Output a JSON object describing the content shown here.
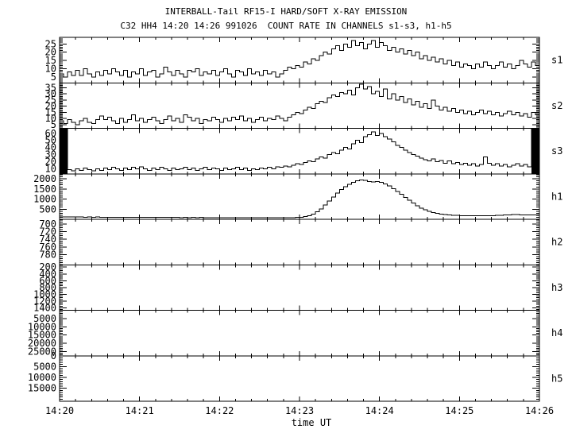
{
  "title": "INTERBALL-Tail RF15-I HARD/SOFT X-RAY EMISSION",
  "subtitle": "C32 HH4 14:20 14:26 991026  COUNT RATE IN CHANNELS s1-s3, h1-h5",
  "colors": {
    "foreground": "#000000",
    "background": "#ffffff"
  },
  "x_axis": {
    "label": "time UT",
    "tick_labels": [
      "14:20",
      "14:21",
      "14:22",
      "14:23",
      "14:24",
      "14:25",
      "14:26"
    ],
    "major_interval_s": 60,
    "minor_interval_s": 12,
    "span_s": 360
  },
  "chart_data": {
    "type": "line",
    "title": "INTERBALL-Tail RF15-I HARD/SOFT X-RAY EMISSION",
    "subtitle": "C32 HH4 14:20 14:26 991026  COUNT RATE IN CHANNELS s1-s3, h1-h5",
    "xlabel": "time UT",
    "x_start": "14:20",
    "x_end": "14:26",
    "bin_seconds": 3,
    "grid": false,
    "legend": "channel labels on right side",
    "panels": [
      {
        "channel": "s1",
        "y_top": 29,
        "y_bottom": 1.5,
        "yticks": [
          5,
          10,
          15,
          20,
          25
        ],
        "minor_step": 1,
        "inverted": false,
        "values": [
          7,
          5,
          8,
          6,
          9,
          6,
          10,
          7,
          5,
          8,
          6,
          9,
          7,
          10,
          8,
          6,
          9,
          5,
          8,
          7,
          10,
          6,
          8,
          9,
          5,
          7,
          11,
          8,
          6,
          9,
          7,
          5,
          9,
          8,
          10,
          6,
          8,
          7,
          9,
          6,
          8,
          10,
          7,
          5,
          9,
          8,
          6,
          10,
          7,
          8,
          6,
          9,
          7,
          8,
          5,
          7,
          9,
          11,
          10,
          12,
          11,
          14,
          13,
          16,
          15,
          18,
          20,
          19,
          22,
          24,
          21,
          25,
          23,
          27,
          24,
          26,
          22,
          25,
          27,
          23,
          26,
          24,
          21,
          23,
          20,
          22,
          19,
          21,
          18,
          20,
          16,
          18,
          15,
          17,
          14,
          16,
          13,
          15,
          12,
          14,
          11,
          13,
          12,
          10,
          13,
          11,
          14,
          12,
          10,
          12,
          14,
          11,
          13,
          10,
          12,
          15,
          13,
          11,
          14,
          12
        ]
      },
      {
        "channel": "s2",
        "y_top": 39,
        "y_bottom": 2,
        "yticks": [
          5,
          10,
          15,
          20,
          25,
          30,
          35
        ],
        "minor_step": 1,
        "inverted": false,
        "values": [
          8,
          6,
          9,
          7,
          5,
          8,
          10,
          7,
          6,
          9,
          12,
          9,
          11,
          8,
          6,
          10,
          7,
          9,
          13,
          8,
          10,
          7,
          9,
          11,
          8,
          6,
          9,
          12,
          8,
          10,
          7,
          13,
          11,
          8,
          10,
          6,
          9,
          8,
          11,
          9,
          7,
          10,
          8,
          11,
          9,
          12,
          8,
          10,
          7,
          9,
          11,
          8,
          10,
          9,
          12,
          10,
          8,
          11,
          13,
          15,
          14,
          17,
          19,
          18,
          22,
          24,
          23,
          27,
          29,
          28,
          31,
          30,
          33,
          29,
          35,
          38,
          34,
          36,
          30,
          32,
          28,
          34,
          26,
          30,
          25,
          28,
          23,
          26,
          21,
          24,
          19,
          22,
          18,
          25,
          20,
          17,
          19,
          16,
          18,
          15,
          17,
          14,
          16,
          13,
          15,
          17,
          14,
          16,
          13,
          15,
          12,
          14,
          16,
          13,
          15,
          12,
          14,
          11,
          15,
          13
        ]
      },
      {
        "channel": "s3",
        "y_top": 67,
        "y_bottom": 3,
        "yticks": [
          10,
          20,
          30,
          40,
          50,
          60
        ],
        "minor_step": 2,
        "inverted": false,
        "saturation_bars_s": [
          [
            0,
            6
          ],
          [
            354,
            360
          ]
        ],
        "values": [
          67,
          67,
          9,
          7,
          10,
          8,
          11,
          9,
          7,
          10,
          8,
          11,
          9,
          12,
          10,
          8,
          11,
          9,
          12,
          10,
          13,
          10,
          8,
          11,
          9,
          12,
          10,
          8,
          11,
          9,
          10,
          12,
          9,
          11,
          8,
          10,
          12,
          9,
          11,
          10,
          8,
          11,
          9,
          10,
          12,
          9,
          11,
          8,
          10,
          9,
          11,
          10,
          12,
          10,
          13,
          12,
          14,
          13,
          15,
          17,
          16,
          19,
          21,
          20,
          24,
          27,
          25,
          30,
          33,
          31,
          36,
          40,
          38,
          45,
          50,
          47,
          55,
          58,
          62,
          57,
          60,
          55,
          52,
          48,
          43,
          40,
          36,
          33,
          30,
          28,
          25,
          23,
          21,
          24,
          20,
          22,
          18,
          21,
          17,
          19,
          16,
          18,
          15,
          17,
          14,
          16,
          27,
          18,
          15,
          17,
          14,
          16,
          13,
          15,
          17,
          14,
          16,
          13,
          67,
          67
        ]
      },
      {
        "channel": "h1",
        "y_top": 2250,
        "y_bottom": 0,
        "yticks": [
          500,
          1000,
          1500,
          2000
        ],
        "minor_step": 100,
        "inverted": false,
        "values": [
          120,
          115,
          118,
          112,
          110,
          113,
          108,
          111,
          106,
          109,
          104,
          107,
          103,
          105,
          100,
          103,
          98,
          101,
          97,
          100,
          95,
          98,
          94,
          96,
          92,
          95,
          91,
          93,
          90,
          92,
          88,
          91,
          87,
          90,
          86,
          89,
          85,
          88,
          86,
          87,
          85,
          86,
          84,
          87,
          83,
          85,
          84,
          86,
          83,
          85,
          84,
          83,
          85,
          82,
          84,
          83,
          85,
          84,
          86,
          90,
          100,
          130,
          180,
          260,
          380,
          520,
          700,
          900,
          1100,
          1300,
          1480,
          1620,
          1730,
          1820,
          1900,
          1950,
          1920,
          1870,
          1850,
          1860,
          1830,
          1750,
          1650,
          1520,
          1380,
          1230,
          1080,
          940,
          800,
          670,
          560,
          470,
          400,
          340,
          295,
          260,
          235,
          215,
          200,
          190,
          182,
          176,
          172,
          170,
          168,
          170,
          173,
          178,
          185,
          195,
          205,
          215,
          222,
          228,
          230,
          226,
          222,
          218,
          215,
          212
        ]
      },
      {
        "channel": "h2",
        "y_top": 688,
        "y_bottom": 806,
        "yticks": [
          700,
          720,
          740,
          760,
          780
        ],
        "minor_step": 5,
        "inverted": true,
        "values": null
      },
      {
        "channel": "h3",
        "y_top": 130,
        "y_bottom": 1470,
        "yticks": [
          200,
          400,
          600,
          800,
          1000,
          1200,
          1400
        ],
        "minor_step": 50,
        "inverted": true,
        "values": null
      },
      {
        "channel": "h4",
        "y_top": 0,
        "y_bottom": 27500,
        "yticks": [
          5000,
          10000,
          15000,
          20000,
          25000
        ],
        "minor_step": 1000,
        "inverted": true,
        "values": null
      },
      {
        "channel": "h5",
        "y_top": 0,
        "y_bottom": 21000,
        "yticks": [
          0,
          5000,
          10000,
          15000
        ],
        "minor_step": 1000,
        "inverted": true,
        "values": null
      }
    ]
  }
}
